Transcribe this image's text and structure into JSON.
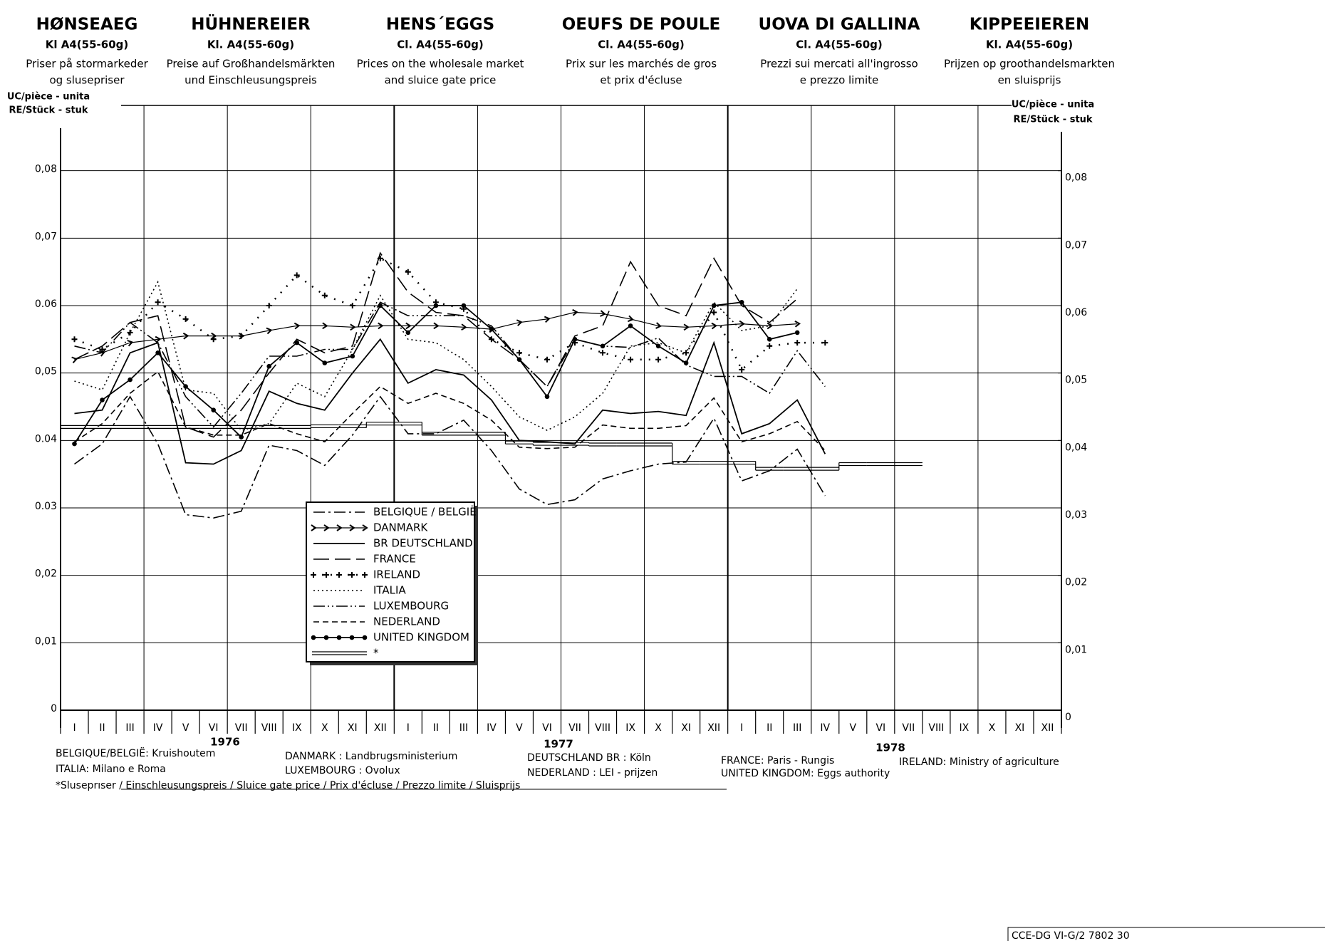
{
  "chart_data": {
    "type": "line",
    "header_columns": [
      {
        "title": "HØNSEAEG",
        "subtitle": "Kl A4(55-60g)",
        "description": [
          "Priser på stormarkeder",
          "og slusepriser"
        ]
      },
      {
        "title": "HÜHNEREIER",
        "subtitle": "Kl. A4(55-60g)",
        "description": [
          "Preise  auf Großhandelsmärkten",
          "und  Einschleusungspreis"
        ]
      },
      {
        "title": "HENS´EGGS",
        "subtitle": "Cl. A4(55-60g)",
        "description": [
          "Prices on the wholesale market",
          "and sluice gate price"
        ]
      },
      {
        "title": "OEUFS DE POULE",
        "subtitle": "Cl. A4(55-60g)",
        "description": [
          "Prix sur les marchés de gros",
          "et prix d'écluse"
        ]
      },
      {
        "title": "UOVA DI GALLINA",
        "subtitle": "Cl. A4(55-60g)",
        "description": [
          "Prezzi sui mercati all'ingrosso",
          "e prezzo limite"
        ]
      },
      {
        "title": "KIPPEEIEREN",
        "subtitle": "Kl. A4(55-60g)",
        "description": [
          "Prijzen op groothandelsmarkten",
          "en sluisprijs"
        ]
      }
    ],
    "ylabel": [
      "UC/pièce - unita",
      "RE/Stück - stuk"
    ],
    "categories": [
      "I",
      "II",
      "III",
      "IV",
      "V",
      "VI",
      "VII",
      "VIII",
      "IX",
      "X",
      "XI",
      "XII",
      "I",
      "II",
      "III",
      "IV",
      "V",
      "VI",
      "VII",
      "VIII",
      "IX",
      "X",
      "XI",
      "XII",
      "I",
      "II",
      "III",
      "IV",
      "V",
      "VI",
      "VII",
      "VIII",
      "IX",
      "X",
      "XI",
      "XII"
    ],
    "years": [
      "1976",
      "1977",
      "1978"
    ],
    "ylim": [
      0,
      0.09
    ],
    "yticks": [
      0,
      {
        "value": 0.01,
        "label": "0,01"
      },
      {
        "value": 0.02,
        "label": "0,02"
      },
      {
        "value": 0.03,
        "label": "0.03"
      },
      {
        "value": 0.04,
        "label": "0.04"
      },
      {
        "value": 0.05,
        "label": "0,05"
      },
      {
        "value": 0.06,
        "label": "0.06"
      },
      {
        "value": 0.07,
        "label": "0,07"
      },
      {
        "value": 0.08,
        "label": "0,08"
      }
    ],
    "y2lim": [
      0,
      0.09
    ],
    "y2ticks": [
      0,
      {
        "value": 0.01,
        "label": "0,01"
      },
      {
        "value": 0.02,
        "label": "0,02"
      },
      {
        "value": 0.03,
        "label": "0,03"
      },
      {
        "value": 0.04,
        "label": "0,04"
      },
      {
        "value": 0.05,
        "label": "0,05"
      },
      {
        "value": 0.06,
        "label": "0,06"
      },
      {
        "value": 0.07,
        "label": "0,07"
      },
      {
        "value": 0.08,
        "label": "0,08"
      }
    ],
    "grid": true,
    "series": [
      {
        "name": "BELGIQUE / BELGIË",
        "color": "#000000",
        "values": [
          0.0365,
          0.0395,
          0.0465,
          0.0395,
          0.029,
          0.0285,
          0.0295,
          0.0393,
          0.0385,
          0.0363,
          0.0408,
          0.0465,
          0.041,
          0.041,
          0.043,
          0.0385,
          0.0328,
          0.0305,
          0.0312,
          0.0343,
          0.0355,
          0.0365,
          0.0368,
          0.0433,
          0.034,
          0.0355,
          0.0387,
          0.0318,
          null,
          null,
          null,
          null,
          null,
          null,
          null,
          null
        ]
      },
      {
        "name": "DANMARK",
        "color": "#000000",
        "values": [
          0.052,
          0.053,
          0.0545,
          0.055,
          0.0555,
          0.0555,
          0.0555,
          0.0563,
          0.057,
          0.057,
          0.0568,
          0.057,
          0.057,
          0.057,
          0.0568,
          0.0565,
          0.0575,
          0.058,
          0.059,
          0.0588,
          0.058,
          0.057,
          0.0568,
          0.057,
          0.0573,
          0.057,
          0.0573,
          null,
          null,
          null,
          null,
          null,
          null,
          null,
          null,
          null
        ]
      },
      {
        "name": "BR DEUTSCHLAND",
        "color": "#000000",
        "values": [
          0.044,
          0.0445,
          0.053,
          0.0545,
          0.0367,
          0.0365,
          0.0385,
          0.0473,
          0.0455,
          0.0445,
          0.05,
          0.055,
          0.0485,
          0.0505,
          0.0497,
          0.046,
          0.04,
          0.0398,
          0.0395,
          0.0445,
          0.044,
          0.0443,
          0.0437,
          0.0545,
          0.041,
          0.0425,
          0.046,
          0.038,
          null,
          null,
          null,
          null,
          null,
          null,
          null,
          null
        ]
      },
      {
        "name": "FRANCE",
        "color": "#000000",
        "values": [
          0.052,
          0.054,
          0.0575,
          0.0585,
          0.042,
          0.0405,
          0.0445,
          0.05,
          0.055,
          0.053,
          0.054,
          0.0678,
          0.062,
          0.059,
          0.0585,
          0.055,
          0.052,
          0.048,
          0.0555,
          0.057,
          0.0665,
          0.06,
          0.0585,
          0.067,
          0.06,
          0.0575,
          0.061,
          null,
          null,
          null,
          null,
          null,
          null,
          null,
          null,
          null
        ]
      },
      {
        "name": "IRELAND",
        "color": "#000000",
        "values": [
          0.055,
          0.0535,
          0.056,
          0.0605,
          0.058,
          0.055,
          0.0555,
          0.06,
          0.0645,
          0.0615,
          0.06,
          0.067,
          0.065,
          0.0605,
          0.0595,
          0.055,
          0.053,
          0.052,
          0.0545,
          0.053,
          0.052,
          0.052,
          0.053,
          0.059,
          0.0505,
          0.054,
          0.0545,
          0.0545,
          null,
          null,
          null,
          null,
          null,
          null,
          null,
          null
        ]
      },
      {
        "name": "ITALIA",
        "color": "#000000",
        "values": [
          0.0488,
          0.0475,
          0.056,
          0.0635,
          0.0475,
          0.047,
          0.0415,
          0.0425,
          0.0485,
          0.0465,
          0.0535,
          0.0615,
          0.055,
          0.0545,
          0.052,
          0.048,
          0.0435,
          0.0415,
          0.0435,
          0.047,
          0.054,
          0.0545,
          0.053,
          0.0605,
          0.0563,
          0.057,
          0.0625,
          null,
          null,
          null,
          null,
          null,
          null,
          null,
          null,
          null
        ]
      },
      {
        "name": "LUXEMBOURG",
        "color": "#000000",
        "values": [
          0.054,
          0.053,
          0.0575,
          0.0545,
          0.0465,
          0.042,
          0.047,
          0.0525,
          0.0525,
          0.0535,
          0.0535,
          0.0605,
          0.0585,
          0.0585,
          0.0585,
          0.057,
          0.052,
          0.048,
          0.055,
          0.054,
          0.0538,
          0.0552,
          0.0512,
          0.0495,
          0.0495,
          0.047,
          0.0533,
          0.048,
          null,
          null,
          null,
          null,
          null,
          null,
          null,
          null
        ]
      },
      {
        "name": "NEDERLAND",
        "color": "#000000",
        "values": [
          0.0398,
          0.0425,
          0.047,
          0.0502,
          0.042,
          0.0408,
          0.0408,
          0.0425,
          0.041,
          0.0398,
          0.044,
          0.048,
          0.0455,
          0.047,
          0.0455,
          0.043,
          0.039,
          0.0388,
          0.039,
          0.0423,
          0.0418,
          0.0418,
          0.0422,
          0.0463,
          0.0398,
          0.041,
          0.0428,
          0.0385,
          null,
          null,
          null,
          null,
          null,
          null,
          null,
          null
        ]
      },
      {
        "name": "UNITED KINGDOM",
        "color": "#000000",
        "values": [
          0.0395,
          0.046,
          0.049,
          0.053,
          0.048,
          0.0445,
          0.0405,
          0.051,
          0.0545,
          0.0515,
          0.0525,
          0.06,
          0.056,
          0.06,
          0.06,
          0.0565,
          0.052,
          0.0465,
          0.055,
          0.054,
          0.057,
          0.054,
          0.0515,
          0.06,
          0.0605,
          0.055,
          0.056,
          null,
          null,
          null,
          null,
          null,
          null,
          null,
          null,
          null
        ]
      },
      {
        "name": "*",
        "color": "#000000",
        "values": [
          0.042,
          0.042,
          0.042,
          0.042,
          0.042,
          0.042,
          0.042,
          0.042,
          0.042,
          0.0421,
          0.0421,
          0.0425,
          0.0425,
          0.041,
          0.041,
          0.041,
          0.0397,
          0.0395,
          0.0395,
          0.0394,
          0.0394,
          0.0394,
          0.0367,
          0.0367,
          0.0367,
          0.0358,
          0.0358,
          0.0358,
          0.0365,
          0.0365,
          0.0365,
          null,
          null,
          null,
          null,
          null
        ]
      }
    ],
    "sources": [
      "BELGIQUE/BELGIË: Kruishoutem",
      "ITALIA: Milano e Roma",
      "*Sluseprıser / Einschleusungspreis / Sluice gate price / Prix d'écluse / Prezzo limite / Sluisprijs",
      "DANMARK : Landbrugsministerium",
      "LUXEMBOURG : Ovolux",
      "DEUTSCHLAND BR : Köln",
      "NEDERLAND : LEI - prijzen",
      "FRANCE: Paris - Rungis",
      "UNITED KINGDOM: Eggs authority",
      "IRELAND: Ministry of agriculture"
    ],
    "code": "CCE-DG VI-G/2 7802 30"
  }
}
